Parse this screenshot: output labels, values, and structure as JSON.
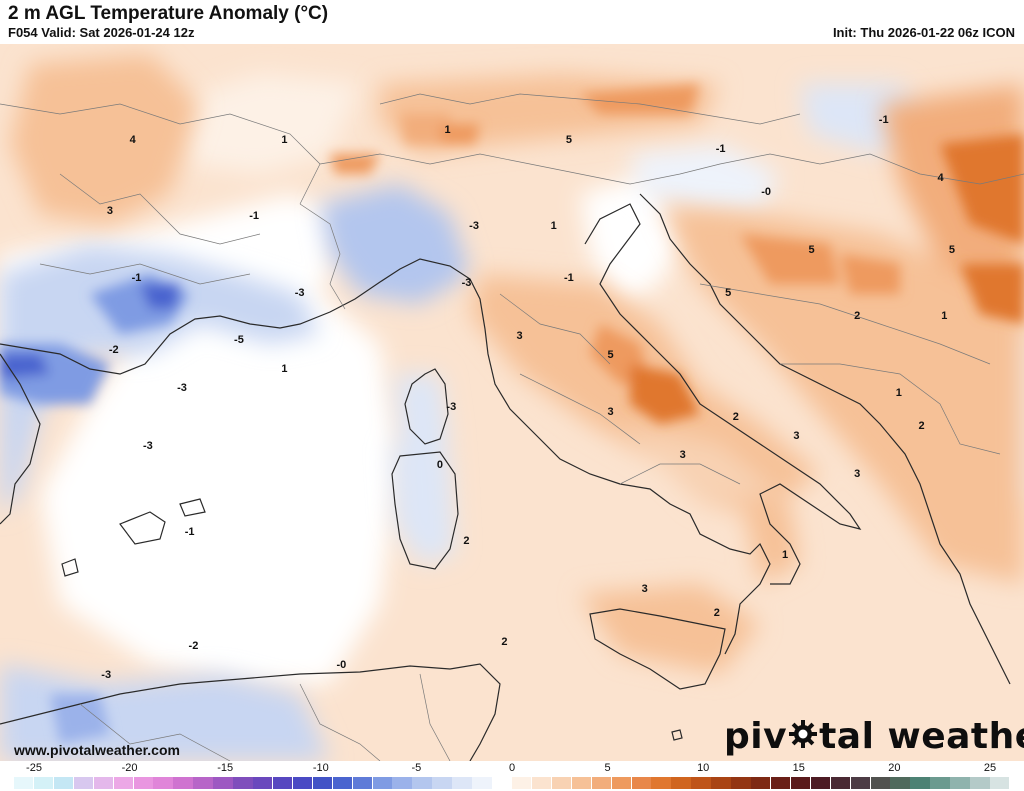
{
  "header": {
    "title": "2 m AGL Temperature Anomaly (°C)",
    "valid": "F054 Valid: Sat 2026-01-24 12z",
    "init": "Init: Thu 2026-01-22 06z ICON"
  },
  "watermark": {
    "website": "www.pivotalweather.com",
    "brand_part1": "piv",
    "brand_part2": "tal weather",
    "brand_icon": "gear-icon"
  },
  "colors": {
    "sea_neutral": "#ffffff",
    "warm_light": "#fbe3cf",
    "warm_mid": "#f6c197",
    "warm_strong": "#ee9a5e",
    "warm_max": "#e0772f",
    "cool_light": "#dde6f7",
    "cool_mid": "#b3c6ee",
    "cool_strong": "#7f9be3",
    "cool_max": "#4a64cf",
    "coast": "#2a2a2a",
    "border": "#7a7a7a"
  },
  "map_labels": [
    {
      "text": "4",
      "lon": 1.5,
      "lat": 49.0
    },
    {
      "text": "1",
      "lon": 5.5,
      "lat": 49.0
    },
    {
      "text": "3",
      "lon": 0.9,
      "lat": 47.5
    },
    {
      "text": "-1",
      "lon": 4.7,
      "lat": 47.4
    },
    {
      "text": "-1",
      "lon": 1.6,
      "lat": 46.1
    },
    {
      "text": "-3",
      "lon": 5.9,
      "lat": 45.8
    },
    {
      "text": "-2",
      "lon": 1.0,
      "lat": 44.6
    },
    {
      "text": "-5",
      "lon": 4.3,
      "lat": 44.8
    },
    {
      "text": "1",
      "lon": 5.5,
      "lat": 44.2
    },
    {
      "text": "-3",
      "lon": 2.8,
      "lat": 43.8
    },
    {
      "text": "-3",
      "lon": 1.9,
      "lat": 42.6
    },
    {
      "text": "1",
      "lon": 9.8,
      "lat": 49.2
    },
    {
      "text": "5",
      "lon": 13.0,
      "lat": 49.0
    },
    {
      "text": "-1",
      "lon": 17.0,
      "lat": 48.8
    },
    {
      "text": "-1",
      "lon": 21.3,
      "lat": 49.4
    },
    {
      "text": "-3",
      "lon": 10.5,
      "lat": 47.2
    },
    {
      "text": "1",
      "lon": 12.6,
      "lat": 47.2
    },
    {
      "text": "-1",
      "lon": 13.0,
      "lat": 46.1
    },
    {
      "text": "-3",
      "lon": 10.3,
      "lat": 46.0
    },
    {
      "text": "-0",
      "lon": 18.2,
      "lat": 47.9
    },
    {
      "text": "4",
      "lon": 22.8,
      "lat": 48.2
    },
    {
      "text": "5",
      "lon": 19.4,
      "lat": 46.7
    },
    {
      "text": "5",
      "lon": 23.1,
      "lat": 46.7
    },
    {
      "text": "5",
      "lon": 17.2,
      "lat": 45.8
    },
    {
      "text": "2",
      "lon": 20.6,
      "lat": 45.3
    },
    {
      "text": "1",
      "lon": 22.9,
      "lat": 45.3
    },
    {
      "text": "3",
      "lon": 11.7,
      "lat": 44.9
    },
    {
      "text": "5",
      "lon": 14.1,
      "lat": 44.5
    },
    {
      "text": "1",
      "lon": 21.7,
      "lat": 43.7
    },
    {
      "text": "-3",
      "lon": 9.9,
      "lat": 43.4
    },
    {
      "text": "3",
      "lon": 14.1,
      "lat": 43.3
    },
    {
      "text": "2",
      "lon": 17.4,
      "lat": 43.2
    },
    {
      "text": "3",
      "lon": 19.0,
      "lat": 42.8
    },
    {
      "text": "2",
      "lon": 22.3,
      "lat": 43.0
    },
    {
      "text": "0",
      "lon": 9.6,
      "lat": 42.2
    },
    {
      "text": "3",
      "lon": 16.0,
      "lat": 42.4
    },
    {
      "text": "3",
      "lon": 20.6,
      "lat": 42.0
    },
    {
      "text": "-1",
      "lon": 3.0,
      "lat": 40.8
    },
    {
      "text": "2",
      "lon": 10.3,
      "lat": 40.6
    },
    {
      "text": "1",
      "lon": 18.7,
      "lat": 40.3
    },
    {
      "text": "3",
      "lon": 15.0,
      "lat": 39.6
    },
    {
      "text": "2",
      "lon": 16.9,
      "lat": 39.1
    },
    {
      "text": "-2",
      "lon": 3.1,
      "lat": 38.4
    },
    {
      "text": "2",
      "lon": 11.3,
      "lat": 38.5
    },
    {
      "text": "-0",
      "lon": 7.0,
      "lat": 38.0
    },
    {
      "text": "-3",
      "lon": 0.8,
      "lat": 37.8
    }
  ],
  "colorbar": {
    "ticks": [
      "-25",
      "-20",
      "-15",
      "-10",
      "-5",
      "0",
      "5",
      "10",
      "15",
      "20",
      "25"
    ],
    "range": [
      -25,
      25
    ],
    "colors": [
      "#e6f7fb",
      "#d4f1f7",
      "#c4e7f4",
      "#d8c8ef",
      "#e4b8eb",
      "#eca8e6",
      "#e996e0",
      "#e085d9",
      "#cf73d0",
      "#b765c8",
      "#9d58c2",
      "#7f4ebc",
      "#6a48bd",
      "#5747c0",
      "#4a4ac4",
      "#4253c6",
      "#4a64cf",
      "#5f7bd8",
      "#7f9be3",
      "#9bb2ea",
      "#b3c6ee",
      "#c8d6f2",
      "#dde6f7",
      "#eef3fb",
      "#ffffff",
      "#fdf1e6",
      "#fbe3cf",
      "#f8d2b3",
      "#f6c197",
      "#f2ad7b",
      "#ee9a5e",
      "#e8874a",
      "#e0772f",
      "#d0651f",
      "#bf5419",
      "#a94414",
      "#933513",
      "#7e2914",
      "#6a1f17",
      "#5a1a1b",
      "#4d1b24",
      "#4a2933",
      "#4d3c45",
      "#51524f",
      "#4f6a5c",
      "#4d8274",
      "#6b9a8f",
      "#8fb3ad",
      "#b4cac8",
      "#d7e3e2"
    ]
  }
}
